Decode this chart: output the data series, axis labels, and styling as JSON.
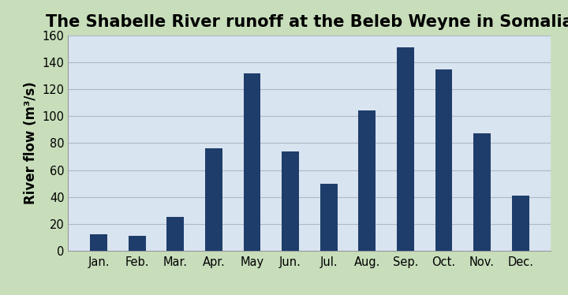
{
  "title": "The Shabelle River runoff at the Beleb Weyne in Somalia",
  "ylabel": "River flow (m³/s)",
  "months": [
    "Jan.",
    "Feb.",
    "Mar.",
    "Apr.",
    "May",
    "Jun.",
    "Jul.",
    "Aug.",
    "Sep.",
    "Oct.",
    "Nov.",
    "Dec."
  ],
  "values": [
    12,
    11,
    25,
    76,
    132,
    74,
    50,
    104,
    151,
    135,
    87,
    41
  ],
  "bar_color": "#1F3D6B",
  "ylim": [
    0,
    160
  ],
  "yticks": [
    0,
    20,
    40,
    60,
    80,
    100,
    120,
    140,
    160
  ],
  "background_color": "#C8DEBB",
  "plot_bg_color": "#D8E4F0",
  "grid_color": "#B0B8C8",
  "title_fontsize": 15,
  "label_fontsize": 12,
  "tick_fontsize": 10.5,
  "bar_width": 0.45
}
